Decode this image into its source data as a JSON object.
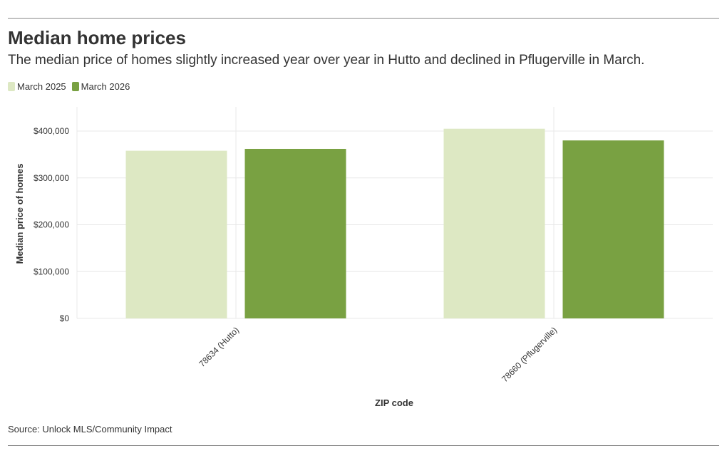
{
  "header": {
    "title": "Median home prices",
    "subtitle": "The median price of homes slightly increased year over year in Hutto and declined in Pflugerville in March."
  },
  "footer": {
    "source": "Source: Unlock MLS/Community Impact"
  },
  "colors": {
    "series_2025": "#dde8c3",
    "series_2026": "#79a142",
    "grid": "#e8e8e8",
    "rule": "#8a8a8a"
  },
  "chart_data": {
    "type": "bar",
    "title": "Median home prices",
    "subtitle": "The median price of homes slightly increased year over year in Hutto and declined in Pflugerville in March.",
    "xlabel": "ZIP code",
    "ylabel": "Median price of homes",
    "categories": [
      "78634 (Hutto)",
      "78660 (Pflugerville)"
    ],
    "series": [
      {
        "name": "March 2025",
        "values": [
          358000,
          405000
        ]
      },
      {
        "name": "March 2026",
        "values": [
          362000,
          380000
        ]
      }
    ],
    "ylim": [
      0,
      400000
    ],
    "yticks": [
      0,
      100000,
      200000,
      300000,
      400000
    ],
    "ytick_labels": [
      "$0",
      "$100,000",
      "$200,000",
      "$300,000",
      "$400,000"
    ],
    "grid": true,
    "legend_position": "top-left"
  }
}
